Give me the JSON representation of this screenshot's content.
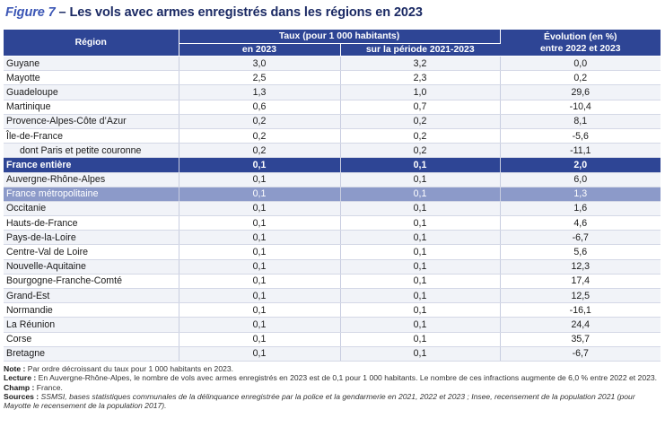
{
  "title": {
    "figure": "Figure 7",
    "separator": " – ",
    "text": "Les vols avec armes enregistrés dans les régions en 2023"
  },
  "table": {
    "headers": {
      "region": "Région",
      "taux_group": "Taux (pour 1 000 habitants)",
      "taux_2023": "en 2023",
      "taux_period": "sur la période 2021-2023",
      "evolution_line1": "Évolution (en %)",
      "evolution_line2": "entre 2022 et 2023"
    },
    "rows": [
      {
        "region": "Guyane",
        "taux_2023": "3,0",
        "taux_period": "3,2",
        "evolution": "0,0",
        "style": ""
      },
      {
        "region": "Mayotte",
        "taux_2023": "2,5",
        "taux_period": "2,3",
        "evolution": "0,2",
        "style": ""
      },
      {
        "region": "Guadeloupe",
        "taux_2023": "1,3",
        "taux_period": "1,0",
        "evolution": "29,6",
        "style": ""
      },
      {
        "region": "Martinique",
        "taux_2023": "0,6",
        "taux_period": "0,7",
        "evolution": "-10,4",
        "style": ""
      },
      {
        "region": "Provence-Alpes-Côte d’Azur",
        "taux_2023": "0,2",
        "taux_period": "0,2",
        "evolution": "8,1",
        "style": ""
      },
      {
        "region": "Île-de-France",
        "taux_2023": "0,2",
        "taux_period": "0,2",
        "evolution": "-5,6",
        "style": ""
      },
      {
        "region": "dont Paris et petite couronne",
        "taux_2023": "0,2",
        "taux_period": "0,2",
        "evolution": "-11,1",
        "style": "indent"
      },
      {
        "region": "France entière",
        "taux_2023": "0,1",
        "taux_period": "0,1",
        "evolution": "2,0",
        "style": "france"
      },
      {
        "region": "Auvergne-Rhône-Alpes",
        "taux_2023": "0,1",
        "taux_period": "0,1",
        "evolution": "6,0",
        "style": ""
      },
      {
        "region": "France métropolitaine",
        "taux_2023": "0,1",
        "taux_period": "0,1",
        "evolution": "1,3",
        "style": "metro"
      },
      {
        "region": "Occitanie",
        "taux_2023": "0,1",
        "taux_period": "0,1",
        "evolution": "1,6",
        "style": ""
      },
      {
        "region": "Hauts-de-France",
        "taux_2023": "0,1",
        "taux_period": "0,1",
        "evolution": "4,6",
        "style": ""
      },
      {
        "region": "Pays-de-la-Loire",
        "taux_2023": "0,1",
        "taux_period": "0,1",
        "evolution": "-6,7",
        "style": ""
      },
      {
        "region": "Centre-Val de Loire",
        "taux_2023": "0,1",
        "taux_period": "0,1",
        "evolution": "5,6",
        "style": ""
      },
      {
        "region": "Nouvelle-Aquitaine",
        "taux_2023": "0,1",
        "taux_period": "0,1",
        "evolution": "12,3",
        "style": ""
      },
      {
        "region": "Bourgogne-Franche-Comté",
        "taux_2023": "0,1",
        "taux_period": "0,1",
        "evolution": "17,4",
        "style": ""
      },
      {
        "region": "Grand-Est",
        "taux_2023": "0,1",
        "taux_period": "0,1",
        "evolution": "12,5",
        "style": ""
      },
      {
        "region": "Normandie",
        "taux_2023": "0,1",
        "taux_period": "0,1",
        "evolution": "-16,1",
        "style": ""
      },
      {
        "region": "La Réunion",
        "taux_2023": "0,1",
        "taux_period": "0,1",
        "evolution": "24,4",
        "style": ""
      },
      {
        "region": "Corse",
        "taux_2023": "0,1",
        "taux_period": "0,1",
        "evolution": "35,7",
        "style": ""
      },
      {
        "region": "Bretagne",
        "taux_2023": "0,1",
        "taux_period": "0,1",
        "evolution": "-6,7",
        "style": ""
      }
    ]
  },
  "notes": {
    "note_label": "Note :",
    "note_text": " Par ordre décroissant du taux pour 1 000 habitants en 2023.",
    "lecture_label": "Lecture :",
    "lecture_text": " En Auvergne-Rhône-Alpes, le nombre de vols avec armes enregistrés en 2023 est de 0,1 pour 1 000 habitants. Le nombre de ces infractions augmente de 6,0 % entre 2022 et 2023.",
    "champ_label": "Champ :",
    "champ_text": " France.",
    "sources_label": "Sources :",
    "sources_text": " SSMSI, bases statistiques communales de la délinquance enregistrée par la police et la gendarmerie en 2021, 2022 et 2023 ; Insee, recensement de la population 2021 (pour Mayotte le recensement de la population 2017)."
  },
  "colors": {
    "header_bg": "#2e4595",
    "highlight_france": "#2e4595",
    "highlight_metro": "#8c9ac9",
    "title_color": "#1b2a64",
    "figure_color": "#3b56b5",
    "stripe": "#f1f3f8"
  }
}
